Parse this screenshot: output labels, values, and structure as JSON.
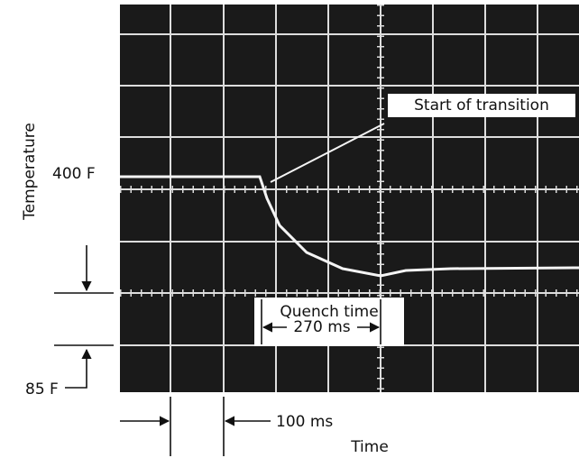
{
  "y_axis_label": "Temperature",
  "upper_label": "400 F",
  "lower_label": "85 F",
  "annotations": {
    "transition": "Start of transition",
    "quench_title": "Quench time",
    "quench_value": "270 ms"
  },
  "time_scale": "100 ms",
  "x_axis_label": "Time"
}
